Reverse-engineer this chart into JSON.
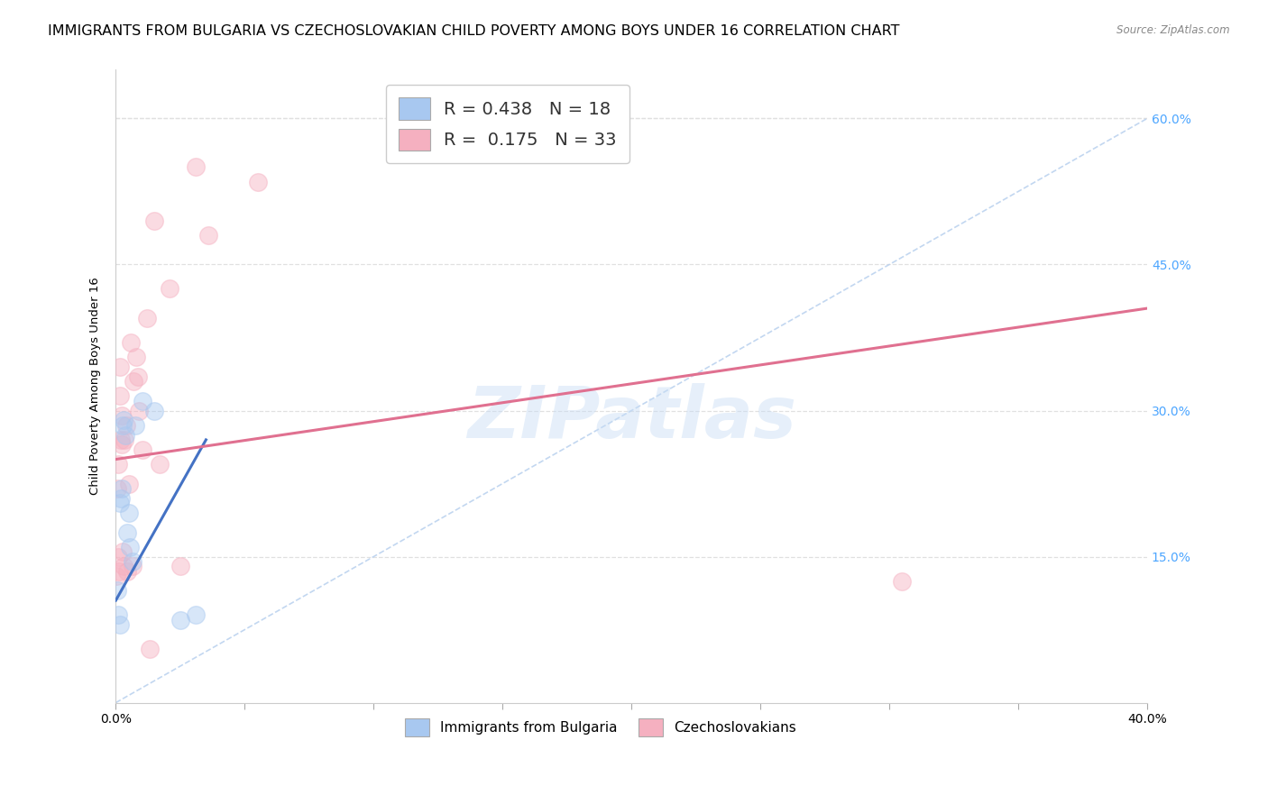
{
  "title": "IMMIGRANTS FROM BULGARIA VS CZECHOSLOVAKIAN CHILD POVERTY AMONG BOYS UNDER 16 CORRELATION CHART",
  "source": "Source: ZipAtlas.com",
  "ylabel": "Child Poverty Among Boys Under 16",
  "ylabel_ticks": [
    "15.0%",
    "30.0%",
    "45.0%",
    "60.0%"
  ],
  "ylabel_values": [
    15.0,
    30.0,
    45.0,
    60.0
  ],
  "xlim": [
    0.0,
    40.0
  ],
  "ylim": [
    0.0,
    65.0
  ],
  "watermark": "ZIPatlas",
  "legend_label_bottom": [
    "Immigrants from Bulgaria",
    "Czechoslovakians"
  ],
  "blue_scatter_x": [
    0.05,
    0.1,
    0.15,
    0.18,
    0.2,
    0.22,
    0.28,
    0.3,
    0.38,
    0.45,
    0.5,
    0.55,
    0.65,
    0.75,
    1.05,
    1.5,
    2.5,
    3.1
  ],
  "blue_scatter_y": [
    11.5,
    9.0,
    8.0,
    20.5,
    21.0,
    22.0,
    28.5,
    29.0,
    27.5,
    17.5,
    19.5,
    16.0,
    14.5,
    28.5,
    31.0,
    30.0,
    8.5,
    9.0
  ],
  "pink_scatter_x": [
    0.02,
    0.05,
    0.08,
    0.1,
    0.12,
    0.15,
    0.18,
    0.2,
    0.22,
    0.25,
    0.28,
    0.3,
    0.35,
    0.4,
    0.45,
    0.5,
    0.6,
    0.65,
    0.7,
    0.8,
    0.85,
    0.9,
    1.05,
    1.2,
    1.3,
    1.5,
    1.7,
    2.1,
    2.5,
    3.1,
    3.6,
    5.5,
    30.5
  ],
  "pink_scatter_y": [
    13.0,
    22.0,
    24.5,
    15.0,
    13.5,
    34.5,
    31.5,
    27.0,
    29.5,
    26.5,
    15.5,
    14.0,
    27.0,
    28.5,
    13.5,
    22.5,
    37.0,
    14.0,
    33.0,
    35.5,
    33.5,
    30.0,
    26.0,
    39.5,
    5.5,
    49.5,
    24.5,
    42.5,
    14.0,
    55.0,
    48.0,
    53.5,
    12.5
  ],
  "blue_line_x": [
    0.0,
    3.5
  ],
  "blue_line_y": [
    10.5,
    27.0
  ],
  "pink_line_x": [
    0.0,
    40.0
  ],
  "pink_line_y": [
    25.0,
    40.5
  ],
  "diagonal_line_x": [
    0.0,
    40.0
  ],
  "diagonal_line_y": [
    0.0,
    60.0
  ],
  "blue_color": "#a8c8f0",
  "pink_color": "#f5b0c0",
  "blue_line_color": "#4472c4",
  "pink_line_color": "#e07090",
  "diagonal_color": "#b8d0ee",
  "scatter_size": 200,
  "alpha_scatter": 0.45,
  "background_color": "#ffffff",
  "title_fontsize": 11.5,
  "right_tick_color": "#4da6ff",
  "grid_color": "#e0e0e0",
  "xtick_positions": [
    0.0,
    5.0,
    10.0,
    15.0,
    20.0,
    25.0,
    30.0,
    35.0,
    40.0
  ]
}
